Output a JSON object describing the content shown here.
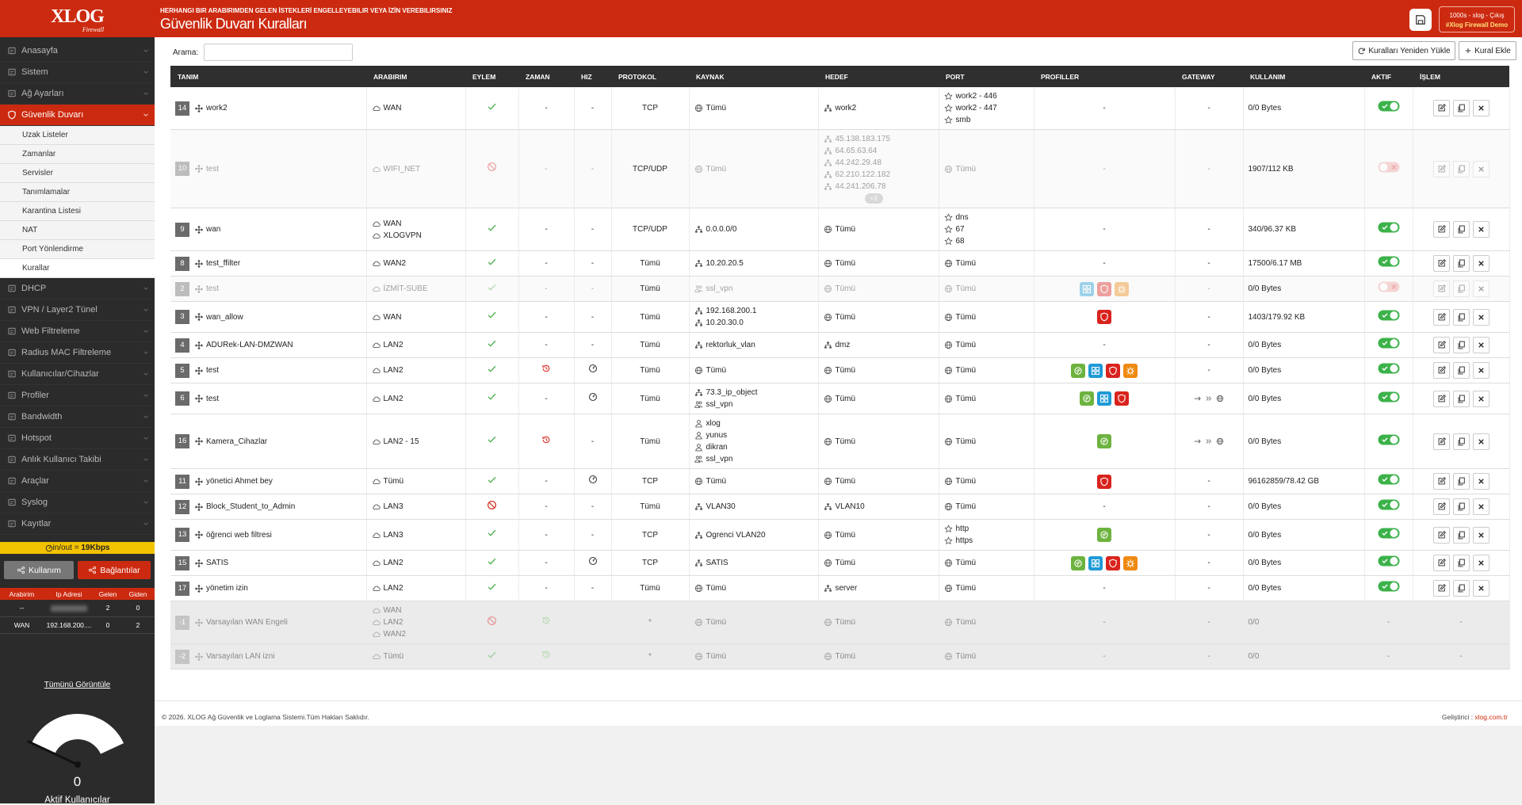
{
  "header": {
    "subtitle": "HERHANGI BIR ARABIRIMDEN GELEN İSTEKLERİ ENGELLEYEBILIR VEYA İZİN VEREBILIRSINIZ",
    "title": "Güvenlik Duvarı Kuralları",
    "user": "1000s - xlog - ",
    "logout": "Çıkış",
    "demo": "#Xlog Firewall Demo"
  },
  "sidebar": {
    "logo": "XLOG",
    "logo_sub": "Firewall",
    "menu": [
      {
        "label": "Anasayfa"
      },
      {
        "label": "Sistem"
      },
      {
        "label": "Ağ Ayarları"
      },
      {
        "label": "Güvenlik Duvarı",
        "active": true,
        "sub": [
          "Uzak Listeler",
          "Zamanlar",
          "Servisler",
          "Tanımlamalar",
          "Karantina Listesi",
          "NAT",
          "Port Yönlendirme",
          "Kurallar"
        ],
        "sub_active": 7
      },
      {
        "label": "DHCP"
      },
      {
        "label": "VPN / Layer2 Tünel"
      },
      {
        "label": "Web Filtreleme"
      },
      {
        "label": "Radius MAC Filtreleme"
      },
      {
        "label": "Kullanıcılar/Cihazlar"
      },
      {
        "label": "Profiler"
      },
      {
        "label": "Bandwidth"
      },
      {
        "label": "Hotspot"
      },
      {
        "label": "Anlık Kullanıcı Takibi"
      },
      {
        "label": "Araçlar"
      },
      {
        "label": "Syslog"
      },
      {
        "label": "Kayıtlar"
      }
    ],
    "traffic_label": "in/out = ",
    "traffic_value": "19Kbps",
    "buttons": [
      "Kullanım",
      "Bağlantılar"
    ],
    "iface_table": {
      "columns": [
        "Arabirim",
        "Ip Adresi",
        "Gelen",
        "Giden"
      ],
      "rows": [
        [
          "--",
          null,
          2,
          0
        ],
        [
          "WAN",
          "192.168.200....",
          0,
          2
        ]
      ]
    },
    "view_all": "Tümünü Görüntüle",
    "gauge": {
      "value": 0,
      "label": "Aktif Kullanıcılar"
    }
  },
  "toolbar": {
    "search_label": "Arama:",
    "reload": "Kuralları Yeniden Yükle",
    "add": "Kural Ekle"
  },
  "table": {
    "columns": [
      "TANIM",
      "ARABIRIM",
      "EYLEM",
      "ZAMAN",
      "HIZ",
      "PROTOKOL",
      "KAYNAK",
      "HEDEF",
      "PORT",
      "PROFILLER",
      "GATEWAY",
      "KULLANIM",
      "AKTIF",
      "İŞLEM"
    ],
    "rows": [
      {
        "id": 14,
        "name": "work2",
        "interfaces": [
          "WAN"
        ],
        "action": "allow",
        "time": "-",
        "speed": "-",
        "protocol": "TCP",
        "source": [
          {
            "icon": "globe",
            "text": "Tümü"
          }
        ],
        "target": [
          {
            "icon": "net",
            "text": "work2"
          }
        ],
        "port": [
          {
            "icon": "star",
            "text": "work2 - 446"
          },
          {
            "icon": "star",
            "text": "work2 - 447"
          },
          {
            "icon": "star",
            "text": "smb"
          }
        ],
        "profiles": "-",
        "gateway": "-",
        "usage": "0/0 Bytes",
        "active": true,
        "buttons": true
      },
      {
        "id": 10,
        "state": "off",
        "name": "test",
        "interfaces": [
          "WIFI_NET"
        ],
        "action": "deny",
        "time": "-",
        "speed": "-",
        "protocol": "TCP/UDP",
        "source": [
          {
            "icon": "globe",
            "text": "Tümü"
          }
        ],
        "target": [
          {
            "icon": "net",
            "text": "45.138.183.175"
          },
          {
            "icon": "net",
            "text": "64.65.63.64"
          },
          {
            "icon": "net",
            "text": "44.242.29.48"
          },
          {
            "icon": "net",
            "text": "62.210.122.182"
          },
          {
            "icon": "net",
            "text": "44.241.206.78"
          }
        ],
        "target_more": "+3",
        "port": [
          {
            "icon": "globe",
            "text": "Tümü"
          }
        ],
        "profiles": "-",
        "gateway": "-",
        "usage": "1907/112 KB",
        "active": false,
        "buttons": true
      },
      {
        "id": 9,
        "name": "wan",
        "interfaces": [
          "WAN",
          "XLOGVPN"
        ],
        "action": "allow",
        "time": "-",
        "speed": "-",
        "protocol": "TCP/UDP",
        "source": [
          {
            "icon": "net",
            "text": "0.0.0.0/0"
          }
        ],
        "target": [
          {
            "icon": "globe",
            "text": "Tümü"
          }
        ],
        "port": [
          {
            "icon": "star",
            "text": "dns"
          },
          {
            "icon": "star",
            "text": "67"
          },
          {
            "icon": "star",
            "text": "68"
          }
        ],
        "profiles": "-",
        "gateway": "-",
        "usage": "340/96.37 KB",
        "active": true,
        "buttons": true
      },
      {
        "id": 8,
        "name": "test_ffilter",
        "interfaces": [
          "WAN2"
        ],
        "action": "allow",
        "time": "-",
        "speed": "-",
        "protocol": "Tümü",
        "source": [
          {
            "icon": "net",
            "text": "10.20.20.5"
          }
        ],
        "target": [
          {
            "icon": "globe",
            "text": "Tümü"
          }
        ],
        "port": [
          {
            "icon": "globe",
            "text": "Tümü"
          }
        ],
        "profiles": "-",
        "gateway": "-",
        "usage": "17500/6.17 MB",
        "active": true,
        "buttons": true
      },
      {
        "id": 2,
        "state": "off",
        "name": "test",
        "interfaces": [
          "İZMİT-SUBE"
        ],
        "action": "allow",
        "time": "-",
        "speed": "-",
        "protocol": "Tümü",
        "source": [
          {
            "icon": "group",
            "text": "ssl_vpn"
          }
        ],
        "target": [
          {
            "icon": "globe",
            "text": "Tümü"
          }
        ],
        "port": [
          {
            "icon": "globe",
            "text": "Tümü"
          }
        ],
        "profiles": [
          {
            "icon": "grid",
            "color": "#1e9ad6"
          },
          {
            "icon": "shield",
            "color": "#d9231d"
          },
          {
            "icon": "bug",
            "color": "#ee8a12"
          }
        ],
        "gateway": "-",
        "usage": "0/0 Bytes",
        "active": false,
        "buttons": true
      },
      {
        "id": 3,
        "name": "wan_allow",
        "interfaces": [
          "WAN"
        ],
        "action": "allow",
        "time": "-",
        "speed": "-",
        "protocol": "Tümü",
        "source": [
          {
            "icon": "net",
            "text": "192.168.200.1"
          },
          {
            "icon": "net",
            "text": "10.20.30.0"
          }
        ],
        "target": [
          {
            "icon": "globe",
            "text": "Tümü"
          }
        ],
        "port": [
          {
            "icon": "globe",
            "text": "Tümü"
          }
        ],
        "profiles": [
          {
            "icon": "shield",
            "color": "#d9231d"
          }
        ],
        "gateway": "-",
        "usage": "1403/179.92 KB",
        "active": true,
        "buttons": true
      },
      {
        "id": 4,
        "name": "ADURek-LAN-DMZWAN",
        "interfaces": [
          "LAN2"
        ],
        "action": "allow",
        "time": "-",
        "speed": "-",
        "protocol": "Tümü",
        "source": [
          {
            "icon": "net",
            "text": "rektorluk_vlan"
          }
        ],
        "target": [
          {
            "icon": "net",
            "text": "dmz"
          }
        ],
        "port": [
          {
            "icon": "globe",
            "text": "Tümü"
          }
        ],
        "profiles": "-",
        "gateway": "-",
        "usage": "0/0 Bytes",
        "active": true,
        "buttons": true
      },
      {
        "id": 5,
        "name": "test",
        "interfaces": [
          "LAN2"
        ],
        "action": "allow",
        "time": null,
        "speed": null,
        "protocol": "Tümü",
        "source": [
          {
            "icon": "globe",
            "text": "Tümü"
          }
        ],
        "target": [
          {
            "icon": "globe",
            "text": "Tümü"
          }
        ],
        "port": [
          {
            "icon": "globe",
            "text": "Tümü"
          }
        ],
        "profiles": [
          {
            "icon": "leaf",
            "color": "#6db33f"
          },
          {
            "icon": "grid",
            "color": "#1e9ad6"
          },
          {
            "icon": "shield",
            "color": "#d9231d"
          },
          {
            "icon": "bug",
            "color": "#ee8a12"
          }
        ],
        "gateway": "-",
        "usage": "0/0 Bytes",
        "active": true,
        "buttons": true
      },
      {
        "id": 6,
        "name": "test",
        "interfaces": [
          "LAN2"
        ],
        "action": "allow",
        "time": "-",
        "speed": null,
        "protocol": "Tümü",
        "source": [
          {
            "icon": "net",
            "text": "73.3_ip_object"
          },
          {
            "icon": "group",
            "text": "ssl_vpn"
          }
        ],
        "target": [
          {
            "icon": "globe",
            "text": "Tümü"
          }
        ],
        "port": [
          {
            "icon": "globe",
            "text": "Tümü"
          }
        ],
        "profiles": [
          {
            "icon": "leaf",
            "color": "#6db33f"
          },
          {
            "icon": "grid",
            "color": "#1e9ad6"
          },
          {
            "icon": "shield",
            "color": "#d9231d"
          }
        ],
        "gateway": null,
        "usage": "0/0 Bytes",
        "active": true,
        "buttons": true
      },
      {
        "id": 16,
        "name": "Kamera_Cihazlar",
        "interfaces": [
          "LAN2 - 15"
        ],
        "action": "allow",
        "time": null,
        "speed": "-",
        "protocol": "Tümü",
        "source": [
          {
            "icon": "user",
            "text": "xlog"
          },
          {
            "icon": "user",
            "text": "yunus"
          },
          {
            "icon": "user",
            "text": "dikran"
          },
          {
            "icon": "group",
            "text": "ssl_vpn"
          }
        ],
        "target": [
          {
            "icon": "globe",
            "text": "Tümü"
          }
        ],
        "port": [
          {
            "icon": "globe",
            "text": "Tümü"
          }
        ],
        "profiles": [
          {
            "icon": "leaf",
            "color": "#6db33f"
          }
        ],
        "gateway": null,
        "usage": "0/0 Bytes",
        "active": true,
        "buttons": true
      },
      {
        "id": 11,
        "name": "yönetici Ahmet bey",
        "interfaces": [
          "Tümü"
        ],
        "action": "allow",
        "time": "-",
        "speed": null,
        "protocol": "TCP",
        "source": [
          {
            "icon": "globe",
            "text": "Tümü"
          }
        ],
        "target": [
          {
            "icon": "globe",
            "text": "Tümü"
          }
        ],
        "port": [
          {
            "icon": "globe",
            "text": "Tümü"
          }
        ],
        "profiles": [
          {
            "icon": "shield",
            "color": "#d9231d"
          }
        ],
        "gateway": "-",
        "usage": "96162859/78.42 GB",
        "active": true,
        "buttons": true
      },
      {
        "id": 12,
        "name": "Block_Student_to_Admin",
        "interfaces": [
          "LAN3"
        ],
        "action": "deny",
        "time": "-",
        "speed": "-",
        "protocol": "Tümü",
        "source": [
          {
            "icon": "net",
            "text": "VLAN30"
          }
        ],
        "target": [
          {
            "icon": "net",
            "text": "VLAN10"
          }
        ],
        "port": [
          {
            "icon": "globe",
            "text": "Tümü"
          }
        ],
        "profiles": "-",
        "gateway": "-",
        "usage": "0/0 Bytes",
        "active": true,
        "buttons": true
      },
      {
        "id": 13,
        "name": "öğrenci web filtresi",
        "interfaces": [
          "LAN3"
        ],
        "action": "allow",
        "time": "-",
        "speed": "-",
        "protocol": "TCP",
        "source": [
          {
            "icon": "net",
            "text": "Ogrenci VLAN20"
          }
        ],
        "target": [
          {
            "icon": "globe",
            "text": "Tümü"
          }
        ],
        "port": [
          {
            "icon": "star",
            "text": "http"
          },
          {
            "icon": "star",
            "text": "https"
          }
        ],
        "profiles": [
          {
            "icon": "leaf",
            "color": "#6db33f"
          }
        ],
        "gateway": "-",
        "usage": "0/0 Bytes",
        "active": true,
        "buttons": true
      },
      {
        "id": 15,
        "name": "SATIS",
        "interfaces": [
          "LAN2"
        ],
        "action": "allow",
        "time": "-",
        "speed": null,
        "protocol": "TCP",
        "source": [
          {
            "icon": "net",
            "text": "SATIS"
          }
        ],
        "target": [
          {
            "icon": "globe",
            "text": "Tümü"
          }
        ],
        "port": [
          {
            "icon": "globe",
            "text": "Tümü"
          }
        ],
        "profiles": [
          {
            "icon": "leaf",
            "color": "#6db33f"
          },
          {
            "icon": "grid",
            "color": "#1e9ad6"
          },
          {
            "icon": "shield",
            "color": "#d9231d"
          },
          {
            "icon": "bug",
            "color": "#ee8a12"
          }
        ],
        "gateway": "-",
        "usage": "0/0 Bytes",
        "active": true,
        "buttons": true
      },
      {
        "id": 17,
        "name": "yönetim izin",
        "interfaces": [
          "LAN2"
        ],
        "action": "allow",
        "time": "-",
        "speed": "-",
        "protocol": "Tümü",
        "source": [
          {
            "icon": "globe",
            "text": "Tümü"
          }
        ],
        "target": [
          {
            "icon": "net",
            "text": "server"
          }
        ],
        "port": [
          {
            "icon": "globe",
            "text": "Tümü"
          }
        ],
        "profiles": "-",
        "gateway": "-",
        "usage": "0/0 Bytes",
        "active": true,
        "buttons": true
      },
      {
        "id": -1,
        "state": "default",
        "name": "Varsayılan WAN Engeli",
        "interfaces": [
          "WAN",
          "LAN2",
          "WAN2"
        ],
        "action": "deny",
        "time": null,
        "protocol": "*",
        "source": [
          {
            "icon": "globe",
            "text": "Tümü"
          }
        ],
        "target": [
          {
            "icon": "globe",
            "text": "Tümü"
          }
        ],
        "port": [
          {
            "icon": "globe",
            "text": "Tümü"
          }
        ],
        "profiles": "-",
        "gateway": "-",
        "usage": "0/0",
        "active": "-",
        "buttons": "-"
      },
      {
        "id": -2,
        "state": "default",
        "name": "Varsayılan LAN izni",
        "interfaces": [
          "Tümü"
        ],
        "action": "allow",
        "time": null,
        "protocol": "*",
        "source": [
          {
            "icon": "globe",
            "text": "Tümü"
          }
        ],
        "target": [
          {
            "icon": "globe",
            "text": "Tümü"
          }
        ],
        "port": [
          {
            "icon": "globe",
            "text": "Tümü"
          }
        ],
        "profiles": "-",
        "gateway": "-",
        "usage": "0/0",
        "active": "-",
        "buttons": "-"
      }
    ]
  },
  "footer": {
    "copyright": "© 2026. XLOG Ağ Güvenlik ve Loglama Sistemi.Tüm Hakları Saklıdır.",
    "developer": "Geliştirici : ",
    "link": "xlog.com.tr"
  }
}
